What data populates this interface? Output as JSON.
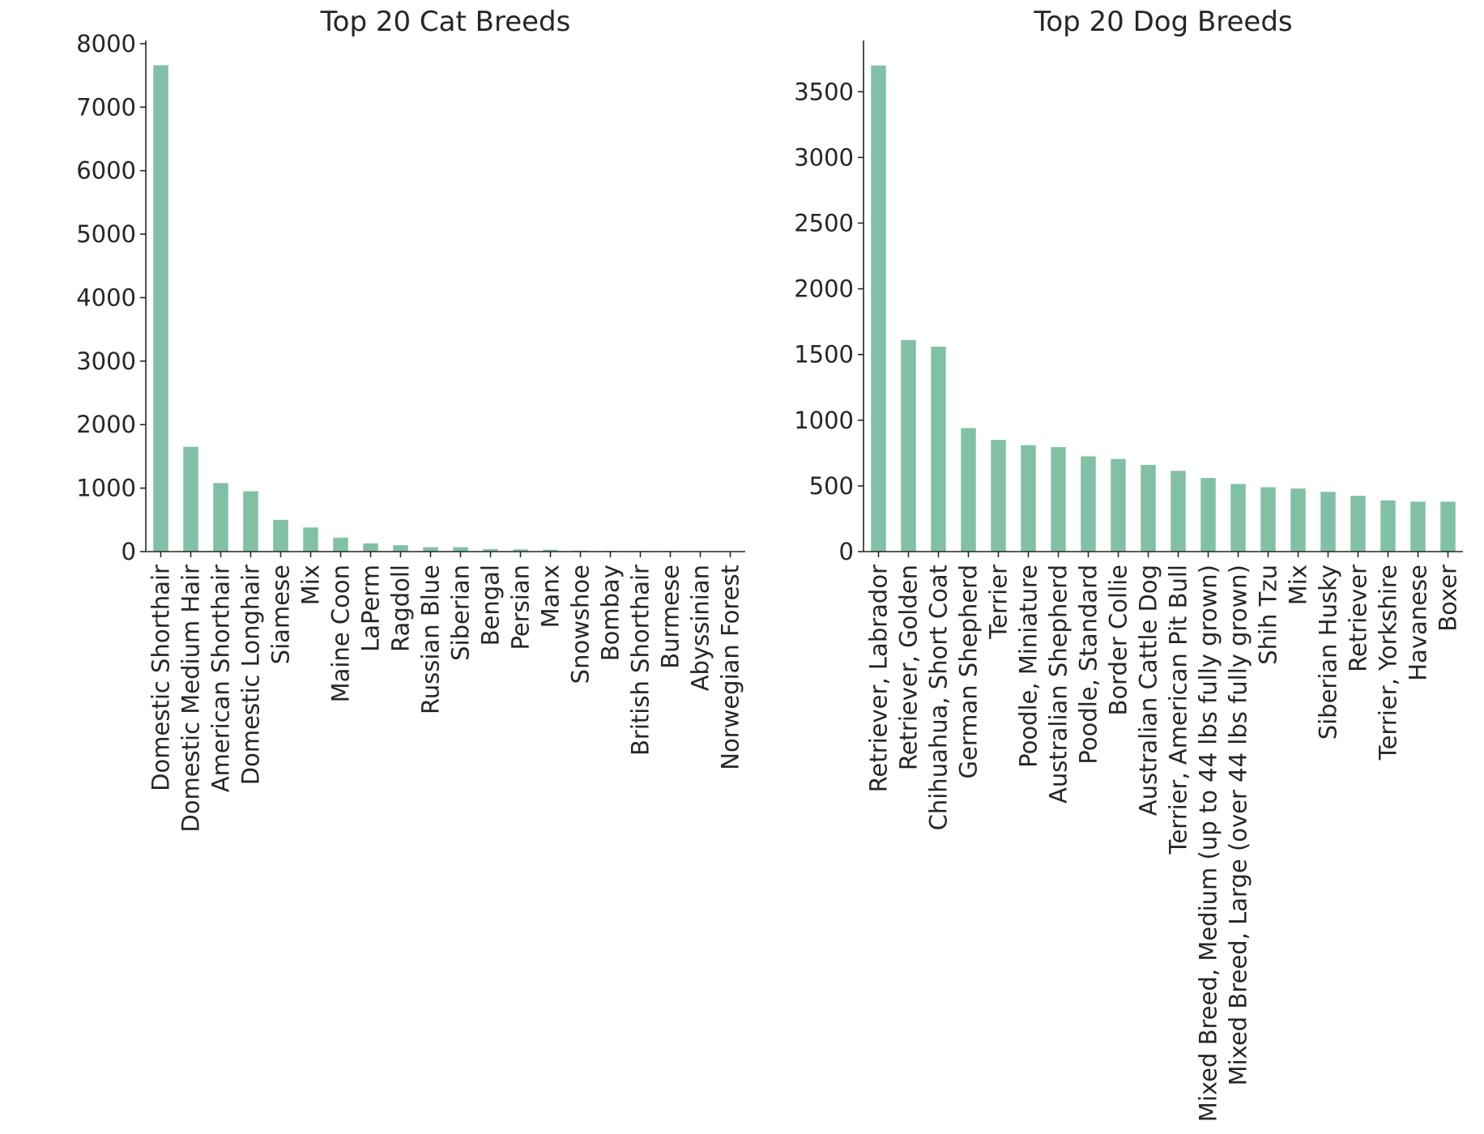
{
  "colors": {
    "bar": "#82c0a6",
    "axis": "#262626",
    "text": "#262626"
  },
  "chart_data": [
    {
      "type": "bar",
      "title": "Top 20 Cat Breeds",
      "xlabel": "",
      "ylabel": "",
      "categories": [
        "Domestic Shorthair",
        "Domestic Medium Hair",
        "American Shorthair",
        "Domestic Longhair",
        "Siamese",
        "Mix",
        "Maine Coon",
        "LaPerm",
        "Ragdoll",
        "Russian Blue",
        "Siberian",
        "Bengal",
        "Persian",
        "Manx",
        "Snowshoe",
        "Bombay",
        "British Shorthair",
        "Burmese",
        "Abyssinian",
        "Norwegian Forest"
      ],
      "values": [
        7660,
        1650,
        1080,
        950,
        500,
        380,
        220,
        130,
        100,
        70,
        70,
        40,
        35,
        30,
        15,
        12,
        10,
        10,
        8,
        6
      ],
      "yticks": [
        0,
        1000,
        2000,
        3000,
        4000,
        5000,
        6000,
        7000,
        8000
      ],
      "ylim": [
        0,
        8050
      ],
      "grid": false,
      "legend": "none"
    },
    {
      "type": "bar",
      "title": "Top 20 Dog Breeds",
      "xlabel": "",
      "ylabel": "",
      "categories": [
        "Retriever, Labrador",
        "Retriever, Golden",
        "Chihuahua, Short Coat",
        "German Shepherd",
        "Terrier",
        "Poodle, Miniature",
        "Australian Shepherd",
        "Poodle, Standard",
        "Border Collie",
        "Australian Cattle Dog",
        "Terrier, American Pit Bull",
        "Mixed Breed, Medium (up to 44 lbs fully grown)",
        "Mixed Breed, Large (over 44 lbs fully grown)",
        "Shih Tzu",
        "Mix",
        "Siberian Husky",
        "Retriever",
        "Terrier, Yorkshire",
        "Havanese",
        "Boxer"
      ],
      "values": [
        3700,
        1610,
        1560,
        940,
        850,
        810,
        795,
        725,
        705,
        660,
        615,
        560,
        515,
        490,
        480,
        455,
        425,
        390,
        380,
        380
      ],
      "yticks": [
        0,
        500,
        1000,
        1500,
        2000,
        2500,
        3000,
        3500
      ],
      "ylim": [
        0,
        3890
      ],
      "grid": false,
      "legend": "none"
    }
  ]
}
